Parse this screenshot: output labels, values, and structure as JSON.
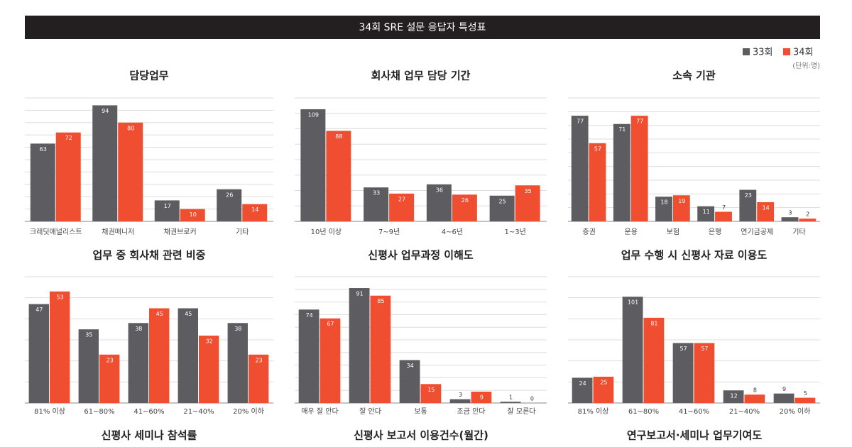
{
  "header": {
    "title": "34회 SRE 설문 응답자 특성표"
  },
  "unit_note": "(단위:명)",
  "chart_data": [
    {
      "type": "bar",
      "title": "담당업무",
      "categories": [
        "크레딧애널리스트",
        "채권매니저",
        "채권브로커",
        "기타"
      ],
      "series": [
        {
          "name": "33회",
          "color": "#5c5c61",
          "values": [
            63,
            94,
            17,
            26
          ]
        },
        {
          "name": "34회",
          "color": "#ef4e31",
          "values": [
            72,
            80,
            10,
            14
          ]
        }
      ],
      "ylim": [
        0,
        100
      ],
      "yticks": [
        0,
        10,
        20,
        30,
        40,
        50,
        60,
        70,
        80,
        90,
        100
      ],
      "grid": true
    },
    {
      "type": "bar",
      "title": "회사채 업무 담당 기간",
      "categories": [
        "10년 이상",
        "7~9년",
        "4~6년",
        "1~3년"
      ],
      "series": [
        {
          "name": "33회",
          "color": "#5c5c61",
          "values": [
            109,
            33,
            36,
            25
          ]
        },
        {
          "name": "34회",
          "color": "#ef4e31",
          "values": [
            88,
            27,
            26,
            35
          ]
        }
      ],
      "ylim": [
        0,
        120
      ],
      "yticks": [
        0,
        15,
        30,
        45,
        60,
        75,
        90,
        105,
        120
      ],
      "grid": true
    },
    {
      "type": "bar",
      "title": "소속 기관",
      "categories": [
        "증권",
        "운용",
        "보험",
        "은행",
        "연기금공제",
        "기타"
      ],
      "series": [
        {
          "name": "33회",
          "color": "#5c5c61",
          "values": [
            77,
            71,
            18,
            11,
            23,
            3
          ]
        },
        {
          "name": "34회",
          "color": "#ef4e31",
          "values": [
            57,
            77,
            19,
            7,
            14,
            2
          ]
        }
      ],
      "ylim": [
        0,
        90
      ],
      "yticks": [
        0,
        10,
        20,
        30,
        40,
        50,
        60,
        70,
        80,
        90
      ],
      "grid": true
    },
    {
      "type": "bar",
      "title": "업무 중 회사채 관련 비중",
      "categories": [
        "81% 이상",
        "61~80%",
        "41~60%",
        "21~40%",
        "20% 이하"
      ],
      "series": [
        {
          "name": "33회",
          "color": "#5c5c61",
          "values": [
            47,
            35,
            38,
            45,
            38
          ]
        },
        {
          "name": "34회",
          "color": "#ef4e31",
          "values": [
            53,
            23,
            45,
            32,
            23
          ]
        }
      ],
      "ylim": [
        0,
        60
      ],
      "yticks": [
        0,
        10,
        20,
        30,
        40,
        50,
        60
      ],
      "grid": true
    },
    {
      "type": "bar",
      "title": "신평사 업무과정 이해도",
      "categories": [
        "매우 잘 안다",
        "잘 안다",
        "보통",
        "조금 안다",
        "잘 모른다"
      ],
      "series": [
        {
          "name": "33회",
          "color": "#5c5c61",
          "values": [
            74,
            91,
            34,
            3,
            1
          ]
        },
        {
          "name": "34회",
          "color": "#ef4e31",
          "values": [
            67,
            85,
            15,
            9,
            0
          ]
        }
      ],
      "ylim": [
        0,
        100
      ],
      "yticks": [
        0,
        10,
        20,
        30,
        40,
        50,
        60,
        70,
        80,
        90,
        100
      ],
      "grid": true
    },
    {
      "type": "bar",
      "title": "업무 수행 시 신평사 자료 이용도",
      "categories": [
        "81% 이상",
        "61~80%",
        "41~60%",
        "21~40%",
        "20% 이하"
      ],
      "series": [
        {
          "name": "33회",
          "color": "#5c5c61",
          "values": [
            24,
            101,
            57,
            12,
            9
          ]
        },
        {
          "name": "34회",
          "color": "#ef4e31",
          "values": [
            25,
            81,
            57,
            8,
            5
          ]
        }
      ],
      "ylim": [
        0,
        120
      ],
      "yticks": [
        0,
        20,
        40,
        60,
        80,
        100,
        120
      ],
      "grid": true
    }
  ],
  "next_titles": [
    "신평사 세미나 참석률",
    "신평사 보고서 이용건수(월간)",
    "연구보고서·세미나 업무기여도"
  ]
}
